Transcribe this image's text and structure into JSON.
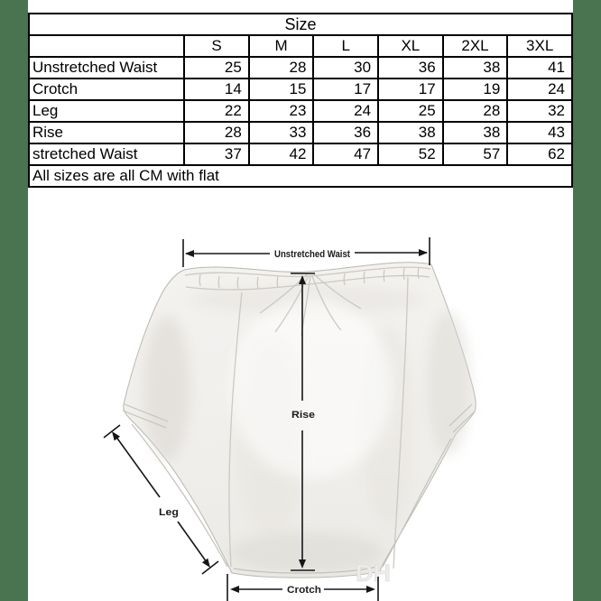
{
  "page": {
    "background": "#ffffff",
    "side_strip_color": "#4a7350"
  },
  "size_chart": {
    "title": "Size",
    "size_columns": [
      "S",
      "M",
      "L",
      "XL",
      "2XL",
      "3XL"
    ],
    "rows": [
      {
        "label": "Unstretched Waist",
        "values": [
          "25",
          "28",
          "30",
          "36",
          "38",
          "41"
        ]
      },
      {
        "label": "Crotch",
        "values": [
          "14",
          "15",
          "17",
          "17",
          "19",
          "24"
        ]
      },
      {
        "label": "Leg",
        "values": [
          "22",
          "23",
          "24",
          "25",
          "28",
          "32"
        ]
      },
      {
        "label": "Rise",
        "values": [
          "28",
          "33",
          "36",
          "38",
          "38",
          "43"
        ]
      },
      {
        "label": "stretched Waist",
        "values": [
          "37",
          "42",
          "47",
          "52",
          "57",
          "62"
        ]
      }
    ],
    "footnote": "All sizes are all CM with flat"
  },
  "diagram": {
    "waist_label": "Unstretched Waist",
    "rise_label": "Rise",
    "leg_label": "Leg",
    "crotch_label": "Crotch",
    "watermark": "DH"
  }
}
